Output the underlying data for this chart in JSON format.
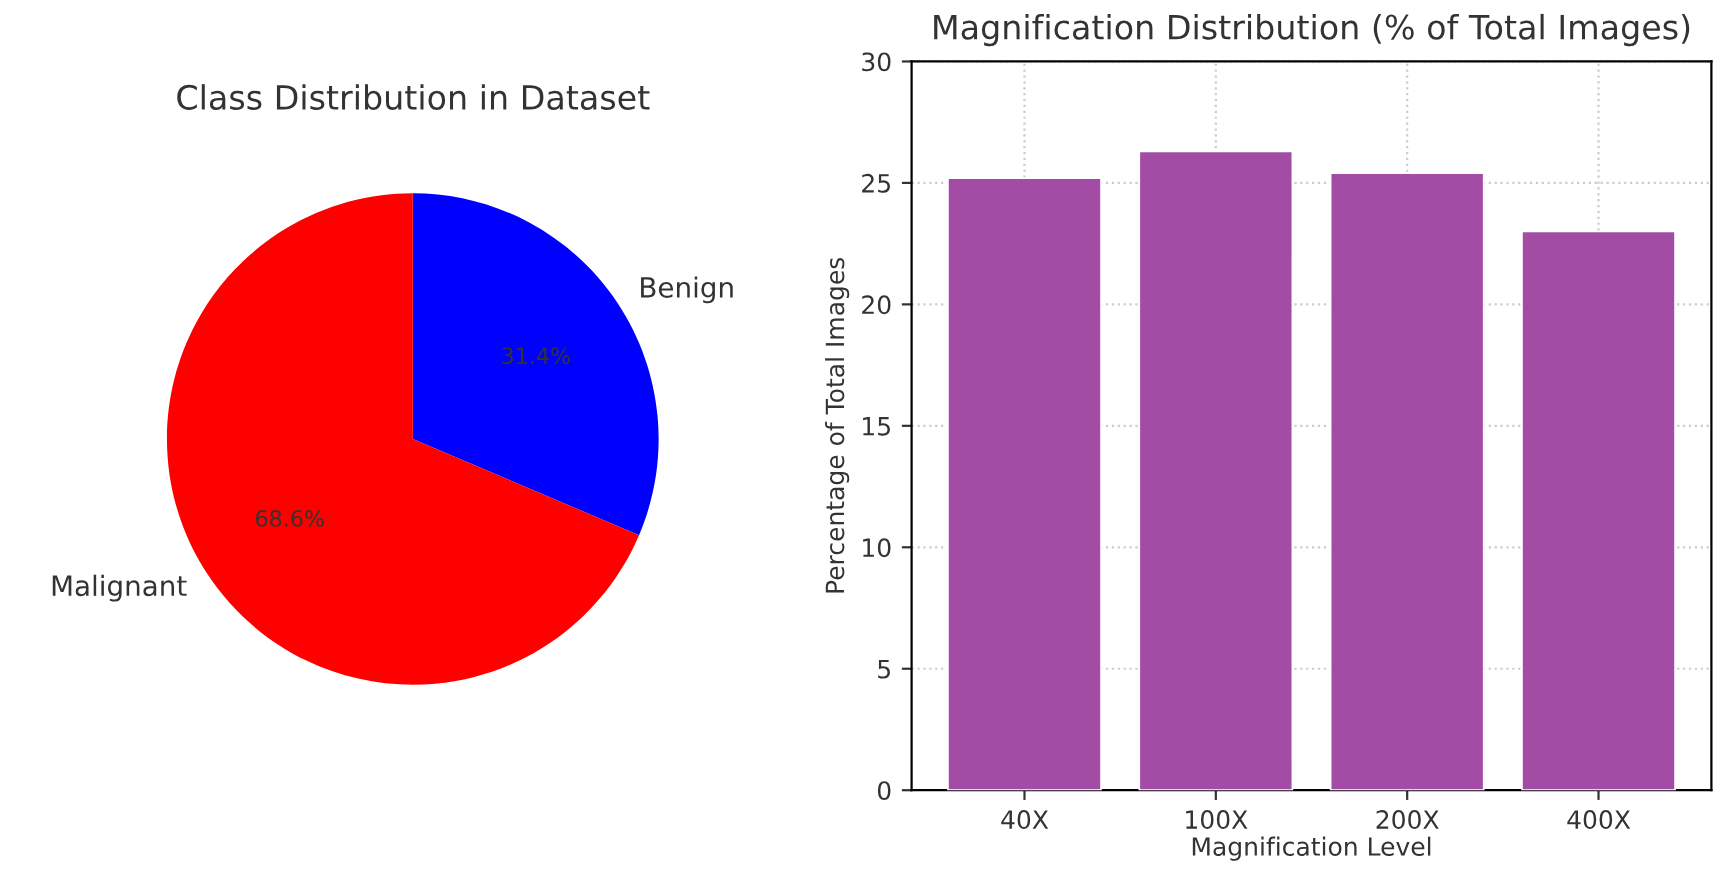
{
  "chart_data": [
    {
      "type": "pie",
      "title": "Class Distribution in Dataset",
      "categories": [
        "Benign",
        "Malignant"
      ],
      "values": [
        31.4,
        68.6
      ],
      "colors": [
        "#0000ff",
        "#ff0000"
      ],
      "value_labels": [
        "31.4%",
        "68.6%"
      ]
    },
    {
      "type": "bar",
      "title": "Magnification Distribution (% of Total Images)",
      "xlabel": "Magnification Level",
      "ylabel": "Percentage of Total Images",
      "categories": [
        "40X",
        "100X",
        "200X",
        "400X"
      ],
      "values": [
        25.2,
        26.3,
        25.4,
        23.0
      ],
      "color": "#a24ca5",
      "ylim": [
        0,
        30
      ],
      "yticks": [
        0,
        5,
        10,
        15,
        20,
        25,
        30
      ],
      "grid": true
    }
  ]
}
